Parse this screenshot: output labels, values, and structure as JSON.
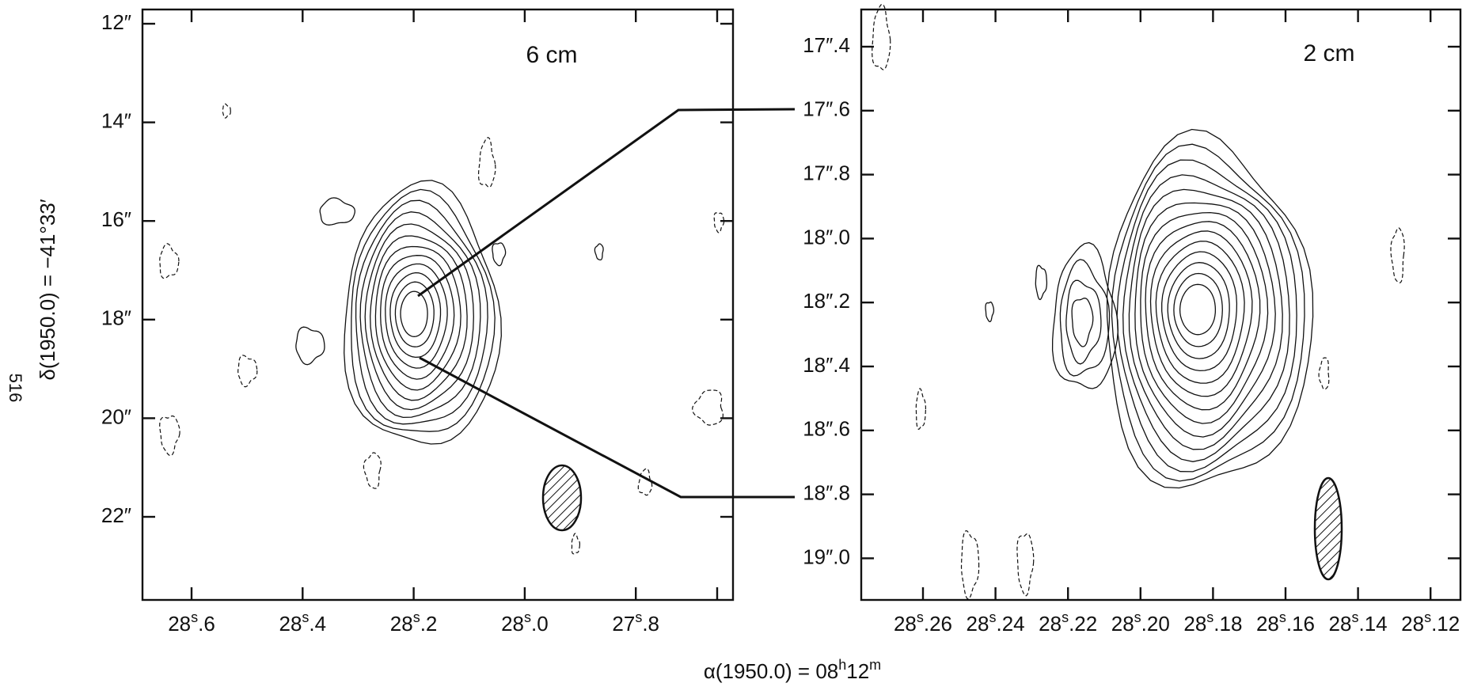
{
  "page_number": "516",
  "y_axis_title": "δ(1950.0) = −41°33′",
  "x_axis_title": {
    "text": "α(1950.0) = 08",
    "sup1": "h",
    "mid": "12",
    "sup2": "m"
  },
  "panels": [
    {
      "label": "6 cm",
      "x_ticks": [
        {
          "int": "28",
          "sup": "s",
          "frac": ".6"
        },
        {
          "int": "28",
          "sup": "s",
          "frac": ".4"
        },
        {
          "int": "28",
          "sup": "s",
          "frac": ".2"
        },
        {
          "int": "28",
          "sup": "s",
          "frac": ".0"
        },
        {
          "int": "27",
          "sup": "s",
          "frac": ".8"
        }
      ],
      "y_ticks": [
        "12″",
        "14″",
        "16″",
        "18″",
        "20″",
        "22″"
      ]
    },
    {
      "label": "2 cm",
      "x_ticks": [
        {
          "int": "28",
          "sup": "s",
          "frac": ".26"
        },
        {
          "int": "28",
          "sup": "s",
          "frac": ".24"
        },
        {
          "int": "28",
          "sup": "s",
          "frac": ".22"
        },
        {
          "int": "28",
          "sup": "s",
          "frac": ".20"
        },
        {
          "int": "28",
          "sup": "s",
          "frac": ".18"
        },
        {
          "int": "28",
          "sup": "s",
          "frac": ".16"
        },
        {
          "int": "28",
          "sup": "s",
          "frac": ".14"
        },
        {
          "int": "28",
          "sup": "s",
          "frac": ".12"
        }
      ],
      "y_ticks": [
        "17″.4",
        "17″.6",
        "17″.8",
        "18″.0",
        "18″.2",
        "18″.4",
        "18″.6",
        "18″.8",
        "19″.0"
      ]
    }
  ]
}
